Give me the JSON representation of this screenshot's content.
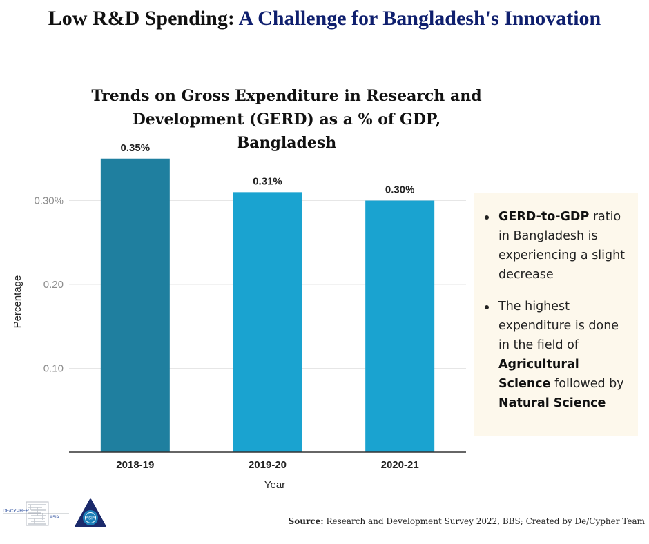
{
  "header": {
    "title_part1": "Low R&D Spending:",
    "title_part2": "A Challenge for Bangladesh's Innovation",
    "title_part2_color": "#0f1f6e"
  },
  "chart_data": {
    "type": "bar",
    "title": "Trends on Gross Expenditure in Research and Development (GERD) as a % of GDP, Bangladesh",
    "categories": [
      "2018-19",
      "2019-20",
      "2020-21"
    ],
    "values": [
      0.35,
      0.31,
      0.3
    ],
    "data_labels": [
      "0.35%",
      "0.31%",
      "0.30%"
    ],
    "bar_colors": [
      "#1f7f9f",
      "#1aa3d0",
      "#1aa3d0"
    ],
    "xlabel": "Year",
    "ylabel": "Percentage",
    "ylim": [
      0,
      0.35
    ],
    "yticks": [
      0.1,
      0.2,
      0.3
    ],
    "ytick_labels": [
      "0.10",
      "0.20",
      "0.30%"
    ],
    "grid": true
  },
  "notes": {
    "bullet1": {
      "bold": "GERD-to-GDP",
      "text": " ratio in Bangladesh is experiencing a slight decrease"
    },
    "bullet2": {
      "text_a": "The highest expenditure is done in the field of ",
      "bold_a": "Agricultural Science",
      "text_b": " followed by ",
      "bold_b": "Natural Science"
    }
  },
  "logos": {
    "decypher": "DE/CYPHER",
    "decypher_sub": "ASIA",
    "asia_badge": "ASIA"
  },
  "footer": {
    "source_label": "Source:",
    "source_text": " Research and Development Survey 2022, BBS; Created by De/Cypher Team"
  }
}
